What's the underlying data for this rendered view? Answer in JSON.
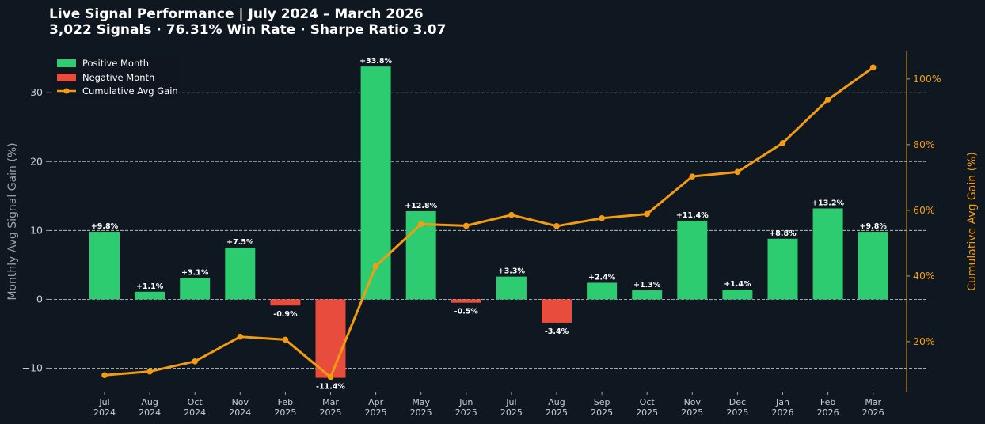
{
  "title_line1": "Live Signal Performance | July 2024 – March 2026",
  "title_line2": "3,022 Signals · 76.31% Win Rate · Sharpe Ratio 3.07",
  "chart_data": {
    "type": "bar+line",
    "categories": [
      [
        "Jul",
        "2024"
      ],
      [
        "Aug",
        "2024"
      ],
      [
        "Oct",
        "2024"
      ],
      [
        "Nov",
        "2024"
      ],
      [
        "Feb",
        "2025"
      ],
      [
        "Mar",
        "2025"
      ],
      [
        "Apr",
        "2025"
      ],
      [
        "May",
        "2025"
      ],
      [
        "Jun",
        "2025"
      ],
      [
        "Jul",
        "2025"
      ],
      [
        "Aug",
        "2025"
      ],
      [
        "Sep",
        "2025"
      ],
      [
        "Oct",
        "2025"
      ],
      [
        "Nov",
        "2025"
      ],
      [
        "Dec",
        "2025"
      ],
      [
        "Jan",
        "2026"
      ],
      [
        "Feb",
        "2026"
      ],
      [
        "Mar",
        "2026"
      ]
    ],
    "bar_values": [
      9.8,
      1.1,
      3.1,
      7.5,
      -0.9,
      -11.4,
      33.8,
      12.8,
      -0.5,
      3.3,
      -3.4,
      2.4,
      1.3,
      11.4,
      1.4,
      8.8,
      13.2,
      9.8
    ],
    "bar_labels": [
      "+9.8%",
      "+1.1%",
      "+3.1%",
      "+7.5%",
      "-0.9%",
      "-11.4%",
      "+33.8%",
      "+12.8%",
      "-0.5%",
      "+3.3%",
      "-3.4%",
      "+2.4%",
      "+1.3%",
      "+11.4%",
      "+1.4%",
      "+8.8%",
      "+13.2%",
      "+9.8%"
    ],
    "cumulative_values": [
      9.8,
      10.9,
      14.0,
      21.5,
      20.6,
      9.2,
      43.0,
      55.8,
      55.3,
      58.6,
      55.2,
      57.6,
      58.9,
      70.3,
      71.7,
      80.5,
      93.7,
      103.5
    ],
    "ylabel": "Monthly Avg Signal Gain (%)",
    "y2label": "Cumulative Avg Gain (%)",
    "ylim": [
      -13.4,
      36
    ],
    "y2lim": [
      4.8,
      108.4
    ],
    "yticks": [
      -10,
      0,
      10,
      20,
      30
    ],
    "ytick_labels": [
      "−10",
      "0",
      "10",
      "20",
      "30"
    ],
    "y2ticks": [
      20,
      40,
      60,
      80,
      100
    ],
    "y2tick_labels": [
      "20%",
      "40%",
      "60%",
      "80%",
      "100%"
    ],
    "grid": "horizontal dashed",
    "legend_position": "top-left",
    "legend": [
      "Positive Month",
      "Negative Month",
      "Cumulative Avg Gain"
    ],
    "colors": {
      "positive": "#2ecc71",
      "negative": "#e74c3c",
      "cumulative": "#f39c12",
      "background": "#0f1721"
    }
  }
}
